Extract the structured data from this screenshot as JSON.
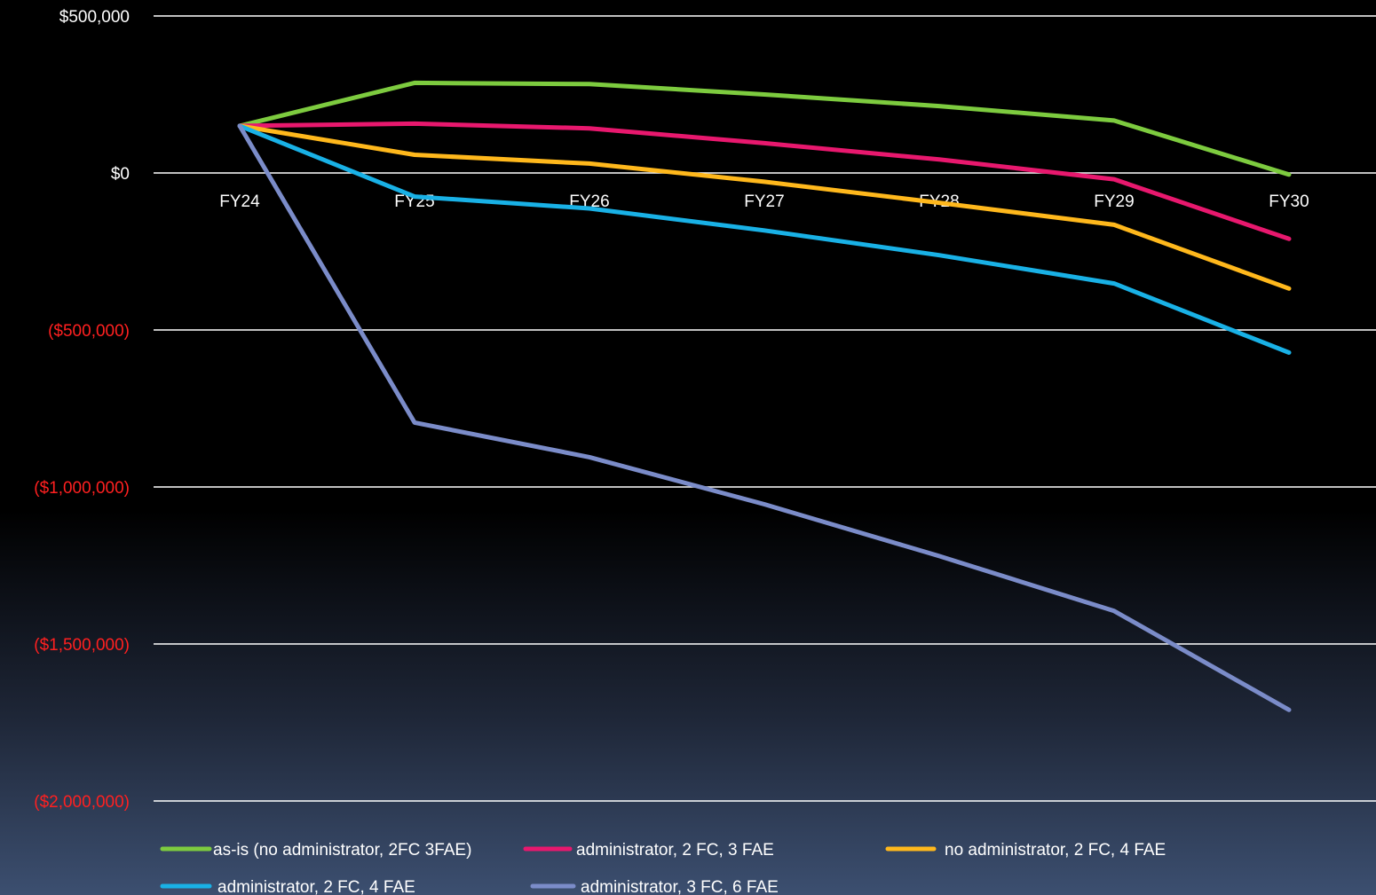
{
  "chart_data": {
    "type": "line",
    "categories": [
      "FY24",
      "FY25",
      "FY26",
      "FY27",
      "FY28",
      "FY29",
      "FY30"
    ],
    "series": [
      {
        "name": "as-is (no administrator, 2FC 3FAE)",
        "color": "#7dcb3f",
        "values": [
          150000,
          287000,
          283000,
          250000,
          213000,
          167000,
          -5000
        ]
      },
      {
        "name": "administrator, 2 FC, 3 FAE",
        "color": "#e8186e",
        "values": [
          150000,
          157000,
          142000,
          95000,
          43000,
          -20000,
          -210000
        ]
      },
      {
        "name": "no administrator, 2 FC, 4 FAE",
        "color": "#ffb81c",
        "values": [
          150000,
          58000,
          30000,
          -28000,
          -95000,
          -165000,
          -368000
        ]
      },
      {
        "name": "administrator, 2 FC, 4 FAE",
        "color": "#19b1e6",
        "values": [
          150000,
          -75000,
          -113000,
          -183000,
          -262000,
          -352000,
          -572000
        ]
      },
      {
        "name": "administrator, 3 FC, 6 FAE",
        "color": "#7b8cc9",
        "values": [
          150000,
          -795000,
          -905000,
          -1055000,
          -1220000,
          -1395000,
          -1710000
        ]
      }
    ],
    "yticks": [
      {
        "value": 500000,
        "label": "$500,000",
        "color": "#ffffff"
      },
      {
        "value": 0,
        "label": "$0",
        "color": "#ffffff"
      },
      {
        "value": -500000,
        "label": "($500,000)",
        "color": "#ff2020"
      },
      {
        "value": -1000000,
        "label": "($1,000,000)",
        "color": "#ff2020"
      },
      {
        "value": -1500000,
        "label": "($1,500,000)",
        "color": "#ff2020"
      },
      {
        "value": -2000000,
        "label": "($2,000,000)",
        "color": "#ff2020"
      }
    ],
    "ylim": [
      -2000000,
      500000
    ],
    "grid": true,
    "gridline_color": "#ffffff",
    "legend_position": "bottom"
  }
}
